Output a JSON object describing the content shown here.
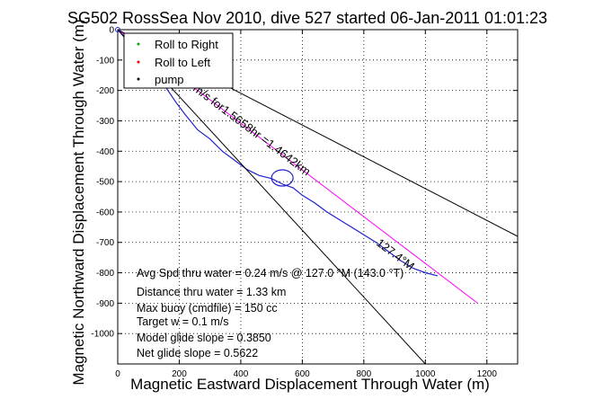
{
  "chart_data": {
    "type": "line",
    "title": "SG502 RossSea Nov 2010, dive 527 started 06-Jan-2011 01:01:23",
    "xlabel": "Magnetic Eastward Displacement Through Water (m)",
    "ylabel": "Magnetic Northward Displacement Through Water (m)",
    "xlim": [
      0,
      1300
    ],
    "ylim": [
      -1100,
      0
    ],
    "xticks": [
      "0",
      "200",
      "400",
      "600",
      "800",
      "1000",
      "1200"
    ],
    "yticks": [
      "0",
      "-100",
      "-200",
      "-300",
      "-400",
      "-500",
      "-600",
      "-700",
      "-800",
      "-900",
      "-1000"
    ],
    "grid": "dotted",
    "legend": {
      "placement": "top-left",
      "entries": [
        {
          "label": "Roll to Right",
          "color": "#00aa00"
        },
        {
          "label": "Roll to Left",
          "color": "#ff0000"
        },
        {
          "label": "pump",
          "color": "#000000"
        }
      ]
    },
    "series": [
      {
        "color": "#1f1fcf",
        "x": [
          0,
          60,
          110,
          150,
          190,
          220,
          260,
          300,
          340,
          380,
          420,
          460,
          500,
          540,
          570,
          600,
          640,
          680,
          720,
          760,
          800,
          840,
          880,
          920,
          960,
          1000,
          1040
        ],
        "y": [
          0,
          -70,
          -130,
          -180,
          -240,
          -280,
          -330,
          -360,
          -400,
          -430,
          -460,
          -480,
          -490,
          -510,
          -520,
          -545,
          -570,
          -600,
          -625,
          -650,
          -675,
          -700,
          -730,
          -760,
          -785,
          -800,
          -810
        ]
      },
      {
        "color": "#ff00ff",
        "x": [
          0,
          1170
        ],
        "y": [
          0,
          -900
        ]
      },
      {
        "color": "#000000",
        "x": [
          0,
          1300
        ],
        "y": [
          0,
          -680
        ]
      },
      {
        "color": "#000000",
        "x": [
          0,
          1000
        ],
        "y": [
          0,
          -1100
        ]
      }
    ],
    "annotations": {
      "dist_label": "m/s for1.5658hr =1.4642km",
      "heading_label": "127.4°M",
      "stats": [
        "Avg Spd thru water = 0.24 m/s @ 127.0 °M (143.0 °T)",
        "Distance thru water = 1.33 km",
        "Max buoy (cmdfile) = 150 cc",
        "Target w = 0.1 m/s",
        "Model glide slope = 0.3850",
        "Net glide slope = 0.5622"
      ]
    }
  }
}
